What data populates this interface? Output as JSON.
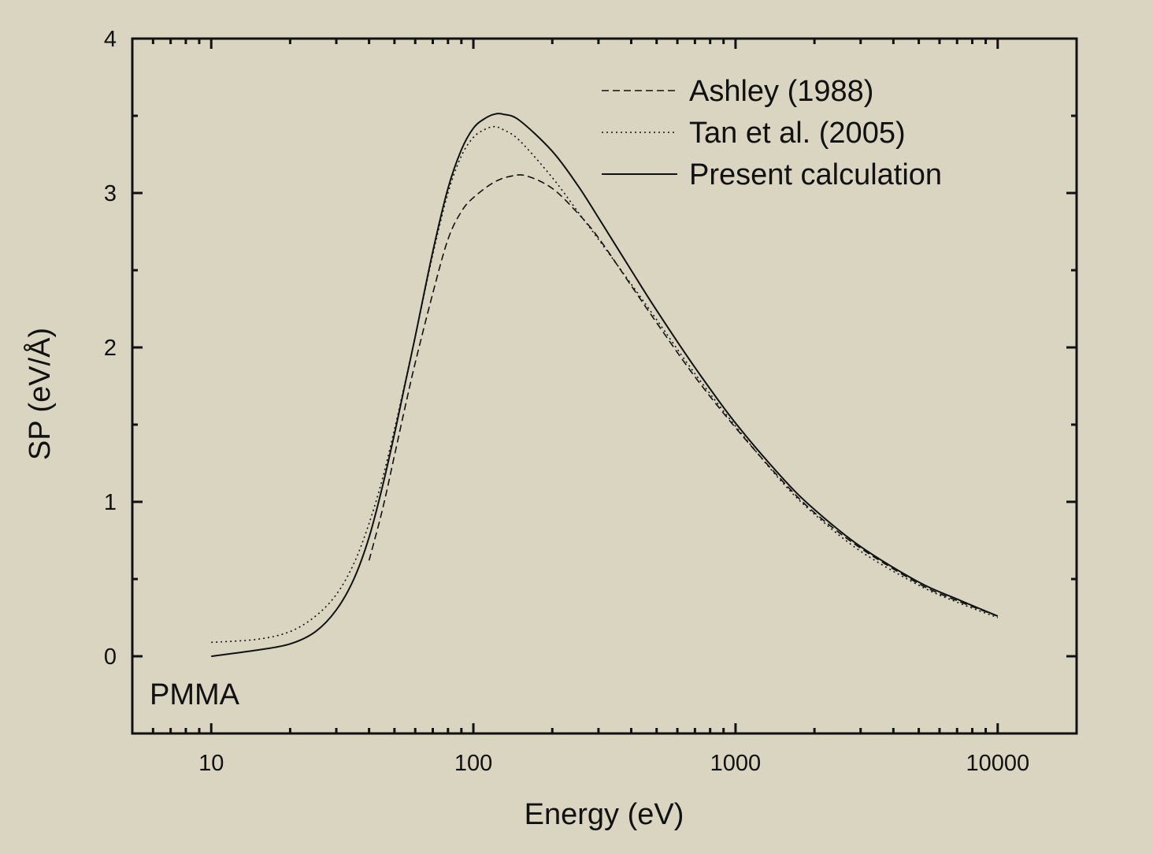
{
  "chart_data": {
    "type": "line",
    "xlabel": "Energy (eV)",
    "ylabel": "SP (eV/Å)",
    "x_scale": "log",
    "xlim": [
      5,
      20000
    ],
    "ylim": [
      -0.5,
      4
    ],
    "x_ticks": [
      10,
      100,
      1000,
      10000
    ],
    "x_tick_labels": [
      "10",
      "100",
      "1000",
      "10000"
    ],
    "y_ticks": [
      0,
      1,
      2,
      3,
      4
    ],
    "y_tick_labels": [
      "0",
      "1",
      "2",
      "3",
      "4"
    ],
    "annotation": "PMMA",
    "grid": false,
    "legend_position": "top-right",
    "series": [
      {
        "name": "Ashley (1988)",
        "style": "dashed",
        "color": "#111111",
        "points": [
          [
            40,
            0.62
          ],
          [
            45,
            0.95
          ],
          [
            50,
            1.3
          ],
          [
            55,
            1.62
          ],
          [
            60,
            1.9
          ],
          [
            70,
            2.35
          ],
          [
            80,
            2.7
          ],
          [
            90,
            2.88
          ],
          [
            100,
            2.97
          ],
          [
            120,
            3.07
          ],
          [
            140,
            3.11
          ],
          [
            160,
            3.11
          ],
          [
            200,
            3.03
          ],
          [
            250,
            2.87
          ],
          [
            300,
            2.71
          ],
          [
            400,
            2.4
          ],
          [
            500,
            2.16
          ],
          [
            700,
            1.81
          ],
          [
            1000,
            1.48
          ],
          [
            1500,
            1.14
          ],
          [
            2000,
            0.93
          ],
          [
            3000,
            0.7
          ],
          [
            5000,
            0.47
          ],
          [
            7000,
            0.36
          ],
          [
            10000,
            0.26
          ]
        ]
      },
      {
        "name": "Tan et al. (2005)",
        "style": "dotted",
        "color": "#111111",
        "points": [
          [
            10,
            0.09
          ],
          [
            15,
            0.11
          ],
          [
            20,
            0.16
          ],
          [
            25,
            0.26
          ],
          [
            30,
            0.4
          ],
          [
            35,
            0.6
          ],
          [
            40,
            0.86
          ],
          [
            45,
            1.15
          ],
          [
            50,
            1.47
          ],
          [
            55,
            1.78
          ],
          [
            60,
            2.07
          ],
          [
            70,
            2.6
          ],
          [
            80,
            3.0
          ],
          [
            90,
            3.24
          ],
          [
            100,
            3.36
          ],
          [
            110,
            3.41
          ],
          [
            120,
            3.43
          ],
          [
            130,
            3.41
          ],
          [
            150,
            3.34
          ],
          [
            200,
            3.1
          ],
          [
            250,
            2.88
          ],
          [
            300,
            2.7
          ],
          [
            400,
            2.41
          ],
          [
            500,
            2.18
          ],
          [
            700,
            1.83
          ],
          [
            1000,
            1.49
          ],
          [
            1500,
            1.13
          ],
          [
            2000,
            0.92
          ],
          [
            3000,
            0.68
          ],
          [
            5000,
            0.46
          ],
          [
            7000,
            0.35
          ],
          [
            10000,
            0.25
          ]
        ]
      },
      {
        "name": "Present calculation",
        "style": "solid",
        "color": "#111111",
        "points": [
          [
            10,
            0.0
          ],
          [
            15,
            0.04
          ],
          [
            20,
            0.08
          ],
          [
            25,
            0.16
          ],
          [
            30,
            0.3
          ],
          [
            35,
            0.5
          ],
          [
            40,
            0.77
          ],
          [
            45,
            1.1
          ],
          [
            50,
            1.44
          ],
          [
            55,
            1.77
          ],
          [
            60,
            2.07
          ],
          [
            70,
            2.62
          ],
          [
            80,
            3.03
          ],
          [
            90,
            3.28
          ],
          [
            100,
            3.42
          ],
          [
            110,
            3.48
          ],
          [
            120,
            3.51
          ],
          [
            130,
            3.51
          ],
          [
            150,
            3.47
          ],
          [
            200,
            3.27
          ],
          [
            250,
            3.05
          ],
          [
            300,
            2.84
          ],
          [
            400,
            2.5
          ],
          [
            500,
            2.24
          ],
          [
            700,
            1.87
          ],
          [
            1000,
            1.51
          ],
          [
            1500,
            1.16
          ],
          [
            2000,
            0.95
          ],
          [
            3000,
            0.71
          ],
          [
            5000,
            0.48
          ],
          [
            7000,
            0.37
          ],
          [
            10000,
            0.26
          ]
        ]
      }
    ]
  }
}
